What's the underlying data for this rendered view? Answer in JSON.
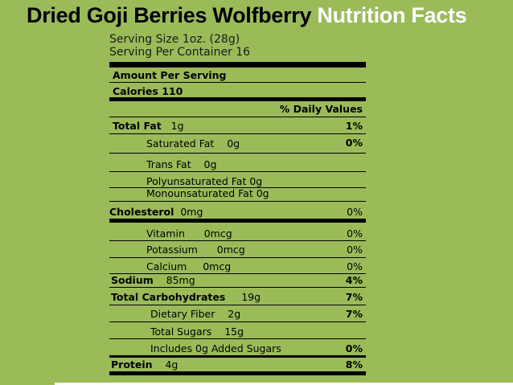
{
  "title": {
    "product": "Dried Goji Berries Wolfberry",
    "suffix": "Nutrition Facts"
  },
  "serving": {
    "size": "Serving Size 1oz. (28g)",
    "per_container": "Serving Per Container 16"
  },
  "header": {
    "amount_per_serving": "Amount Per Serving",
    "calories": "Calories 110",
    "daily_values": "% Daily Values"
  },
  "rows": {
    "total_fat": {
      "label": "Total Fat",
      "amount": "1g",
      "dv": "1%"
    },
    "saturated_fat": {
      "label": "Saturated Fat",
      "amount": "0g",
      "dv": "0%"
    },
    "trans_fat": {
      "label": "Trans Fat",
      "amount": "0g"
    },
    "polyunsaturated_fat": {
      "label": "Polyunsaturated Fat 0g"
    },
    "monounsaturated_fat": {
      "label": "Monounsaturated Fat 0g"
    },
    "cholesterol": {
      "label": "Cholesterol",
      "amount": "0mg",
      "dv": "0%"
    },
    "vitamin": {
      "label": "Vitamin",
      "amount": "0mcg",
      "dv": "0%"
    },
    "potassium": {
      "label": "Potassium",
      "amount": "0mcg",
      "dv": "0%"
    },
    "calcium": {
      "label": "Calcium",
      "amount": "0mcg",
      "dv": "0%"
    },
    "sodium": {
      "label": "Sodium",
      "amount": "85mg",
      "dv": "4%"
    },
    "total_carbohydrates": {
      "label": "Total Carbohydrates",
      "amount": "19g",
      "dv": "7%"
    },
    "dietary_fiber": {
      "label": "Dietary Fiber",
      "amount": "2g",
      "dv": "7%"
    },
    "total_sugars": {
      "label": "Total Sugars",
      "amount": "15g"
    },
    "added_sugars": {
      "label": "Includes 0g Added Sugars",
      "dv": "0%"
    },
    "protein": {
      "label": "Protein",
      "amount": "4g",
      "dv": "8%"
    }
  },
  "colors": {
    "background": "#9bbb59",
    "accent": "#ffffff",
    "text": "#000000"
  }
}
